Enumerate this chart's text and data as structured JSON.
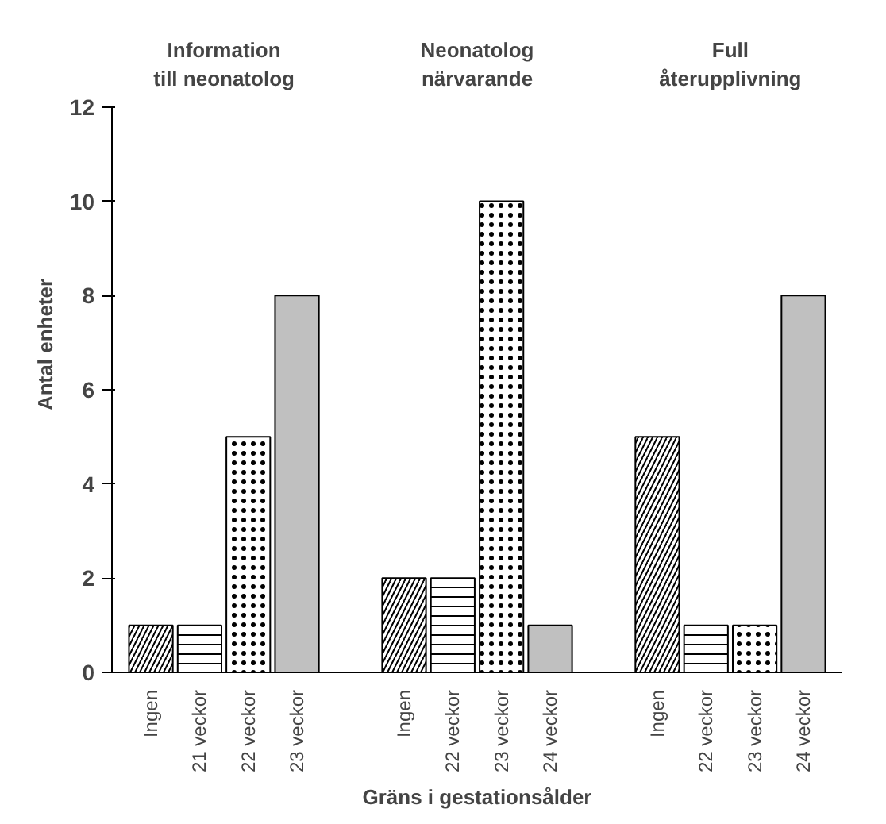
{
  "chart_data": {
    "type": "bar",
    "xlabel": "Gräns i gestationsålder",
    "ylabel": "Antal enheter",
    "annotations": [
      "Information\ntill neonatolog",
      "Neonatolog\nnärvarande",
      "Full\nåterupplivning"
    ],
    "categories": [
      "Ingen",
      "21 veckor",
      "22 veckor",
      "23 veckor",
      "Ingen",
      "22 veckor",
      "23 veckor",
      "24 veckor",
      "Ingen",
      "22 veckor",
      "23 veckor",
      "24 veckor"
    ],
    "values": [
      1,
      1,
      5,
      8,
      2,
      2,
      10,
      1,
      5,
      1,
      1,
      8
    ],
    "colors": [
      "#ffffff",
      "#ffffff",
      "#ffffff",
      "#c0c0c0",
      "#ffffff",
      "#ffffff",
      "#ffffff",
      "#c0c0c0",
      "#ffffff",
      "#ffffff",
      "#ffffff",
      "#c0c0c0"
    ],
    "ylim": [
      0,
      12
    ],
    "yticks": [
      0,
      2,
      4,
      6,
      8,
      10,
      12
    ],
    "grid": false
  }
}
